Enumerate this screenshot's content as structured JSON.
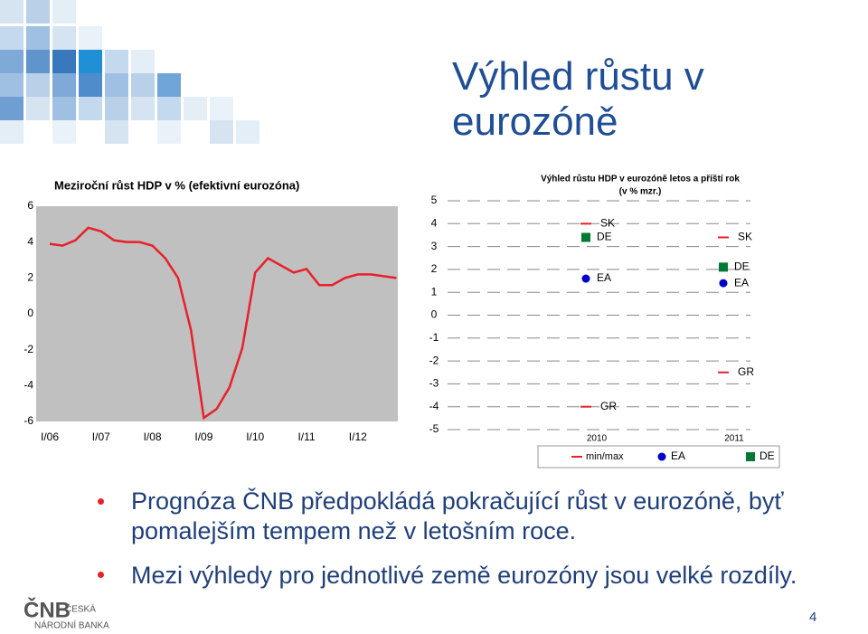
{
  "slide": {
    "title": "Výhled růstu v eurozóně",
    "bullets": [
      "Prognóza ČNB předpokládá pokračující růst v eurozóně, byť pomalejším tempem než v letošním roce.",
      "Mezi výhledy pro jednotlivé země eurozóny jsou velké rozdíly."
    ],
    "page_number": "4",
    "logo": [
      "ČNB",
      "ČESKÁ",
      "NÁRODNÍ BANKA"
    ]
  },
  "chart_data": [
    {
      "type": "line",
      "title": "Meziroční růst HDP v % (efektivní eurozóna)",
      "categories": [
        "I/06",
        null,
        null,
        null,
        "I/07",
        null,
        null,
        null,
        "I/08",
        null,
        null,
        null,
        "I/09",
        null,
        null,
        null,
        "I/10",
        null,
        null,
        null,
        "I/11",
        null,
        null,
        null,
        "I/12",
        null,
        null,
        null
      ],
      "series": [
        {
          "color": "#e8202a",
          "values": [
            3.9,
            3.8,
            4.1,
            4.8,
            4.6,
            4.1,
            4.0,
            4.0,
            3.8,
            3.1,
            2.0,
            -0.9,
            -5.8,
            -5.3,
            -4.1,
            -1.9,
            2.3,
            3.1,
            2.7,
            2.3,
            2.5,
            1.6,
            1.6,
            2.0,
            2.2,
            2.2,
            2.1,
            2.0
          ]
        }
      ],
      "ylim": [
        -6,
        6
      ],
      "yticks": [
        6,
        4,
        2,
        0,
        -2,
        -4,
        -6
      ],
      "background": "#c0c0c0"
    },
    {
      "type": "range",
      "title": "Výhled růstu HDP v eurozóně letos a příští rok",
      "subtitle": "(v % mzr.)",
      "categories": [
        "2010",
        "2011"
      ],
      "range": {
        "name": "min/max",
        "color": "#e8202a",
        "max": [
          4.0,
          3.4
        ],
        "min": [
          -4.0,
          -2.5
        ],
        "max_labels": [
          "SK",
          "SK"
        ],
        "min_labels": [
          "GR",
          "GR"
        ]
      },
      "series": [
        {
          "name": "EA",
          "color": "#0000cc",
          "marker": "circle",
          "values": [
            1.6,
            1.4
          ]
        },
        {
          "name": "DE",
          "color": "#007a33",
          "marker": "square",
          "values": [
            3.4,
            2.1
          ]
        }
      ],
      "ylim": [
        -5,
        5
      ],
      "yticks": [
        5,
        4,
        3,
        2,
        1,
        0,
        -1,
        -2,
        -3,
        -4,
        -5
      ],
      "grid": true
    }
  ]
}
